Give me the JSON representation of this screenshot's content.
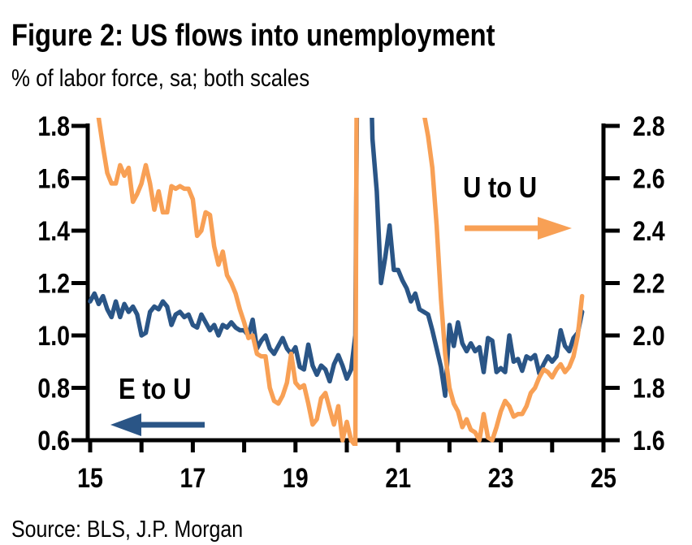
{
  "header": {
    "title": "Figure 2: US flows into unemployment",
    "subtitle": "% of labor force, sa; both scales"
  },
  "footer": {
    "source": "Source: BLS, J.P. Morgan"
  },
  "colors": {
    "e_to_u": "#2A5586",
    "u_to_u": "#F8A055",
    "axis": "#000000",
    "text": "#000000",
    "background": "#FFFFFF"
  },
  "chart_data": {
    "type": "line",
    "title": "Figure 2: US flows into unemployment",
    "subtitle": "% of labor force, sa; both scales",
    "x_axis": {
      "min": 15,
      "max": 25,
      "tick_interval": 1,
      "labeled_ticks": [
        "15",
        "17",
        "19",
        "21",
        "23",
        "25"
      ]
    },
    "left_axis": {
      "series": "E to U",
      "min": 0.6,
      "max": 1.8,
      "tick_interval": 0.2,
      "tick_labels": [
        "1.8",
        "1.6",
        "1.4",
        "1.2",
        "1.0",
        "0.8",
        "0.6"
      ]
    },
    "right_axis": {
      "series": "U to U",
      "min": 1.6,
      "max": 2.8,
      "tick_interval": 0.2,
      "tick_labels": [
        "2.8",
        "2.6",
        "2.4",
        "2.2",
        "2.0",
        "1.8",
        "1.6"
      ]
    },
    "x_start_year": 15.0,
    "x_step_years": 0.08333,
    "grid": false,
    "series": [
      {
        "name": "E to U",
        "axis": "left",
        "color": "#2A5586",
        "values": [
          1.13,
          1.16,
          1.12,
          1.15,
          1.1,
          1.07,
          1.13,
          1.07,
          1.12,
          1.09,
          1.11,
          1.08,
          1.0,
          1.01,
          1.09,
          1.11,
          1.1,
          1.13,
          1.11,
          1.04,
          1.08,
          1.09,
          1.07,
          1.08,
          1.04,
          1.03,
          1.08,
          1.05,
          1.02,
          1.04,
          1.0,
          1.04,
          1.03,
          1.05,
          1.03,
          1.02,
          1.02,
          1.0,
          1.06,
          0.95,
          0.98,
          1.0,
          0.95,
          0.93,
          0.96,
          0.99,
          0.95,
          0.93,
          0.955,
          0.88,
          0.87,
          0.965,
          0.885,
          0.85,
          0.885,
          0.87,
          0.825,
          0.89,
          0.925,
          0.885,
          0.835,
          0.87,
          1.0,
          3.4,
          3.2,
          2.4,
          1.75,
          1.55,
          1.2,
          1.3,
          1.42,
          1.25,
          1.25,
          1.21,
          1.18,
          1.13,
          1.16,
          1.1,
          1.09,
          1.08,
          1.02,
          0.95,
          0.88,
          0.77,
          1.04,
          0.96,
          1.05,
          0.97,
          0.94,
          0.97,
          0.94,
          0.955,
          0.86,
          0.99,
          0.98,
          0.86,
          0.875,
          0.86,
          1.0,
          0.9,
          0.91,
          0.865,
          0.92,
          0.91,
          0.925,
          0.855,
          0.89,
          0.92,
          0.9,
          0.92,
          1.02,
          0.96,
          0.94,
          0.99,
          1.01,
          1.09
        ]
      },
      {
        "name": "U to U",
        "axis": "right",
        "color": "#F8A055",
        "values": [
          2.96,
          2.9,
          2.83,
          2.72,
          2.62,
          2.58,
          2.58,
          2.65,
          2.61,
          2.64,
          2.51,
          2.54,
          2.58,
          2.65,
          2.58,
          2.48,
          2.55,
          2.47,
          2.47,
          2.57,
          2.56,
          2.57,
          2.56,
          2.56,
          2.52,
          2.38,
          2.4,
          2.47,
          2.46,
          2.34,
          2.27,
          2.32,
          2.23,
          2.2,
          2.16,
          2.1,
          2.05,
          1.99,
          2.0,
          1.93,
          1.92,
          1.92,
          1.8,
          1.75,
          1.74,
          1.77,
          1.82,
          1.93,
          1.82,
          1.8,
          1.81,
          1.74,
          1.66,
          1.68,
          1.76,
          1.78,
          1.72,
          1.66,
          1.73,
          1.6,
          1.67,
          1.6,
          1.58,
          6.0,
          5.6,
          5.2,
          4.8,
          4.4,
          4.0,
          3.7,
          3.45,
          3.3,
          3.2,
          3.1,
          3.05,
          3.0,
          2.95,
          2.9,
          2.85,
          2.76,
          2.64,
          2.42,
          2.14,
          1.93,
          1.8,
          1.74,
          1.71,
          1.65,
          1.68,
          1.64,
          1.63,
          1.6,
          1.7,
          1.61,
          1.6,
          1.65,
          1.71,
          1.75,
          1.73,
          1.69,
          1.7,
          1.7,
          1.73,
          1.78,
          1.8,
          1.84,
          1.87,
          1.86,
          1.84,
          1.87,
          1.89,
          1.86,
          1.88,
          1.92,
          2.0,
          2.15
        ]
      }
    ],
    "annotations": [
      {
        "text": "E to U",
        "arrow_direction": "left",
        "color": "#2A5586"
      },
      {
        "text": "U to U",
        "arrow_direction": "right",
        "color": "#F8A055"
      }
    ]
  }
}
